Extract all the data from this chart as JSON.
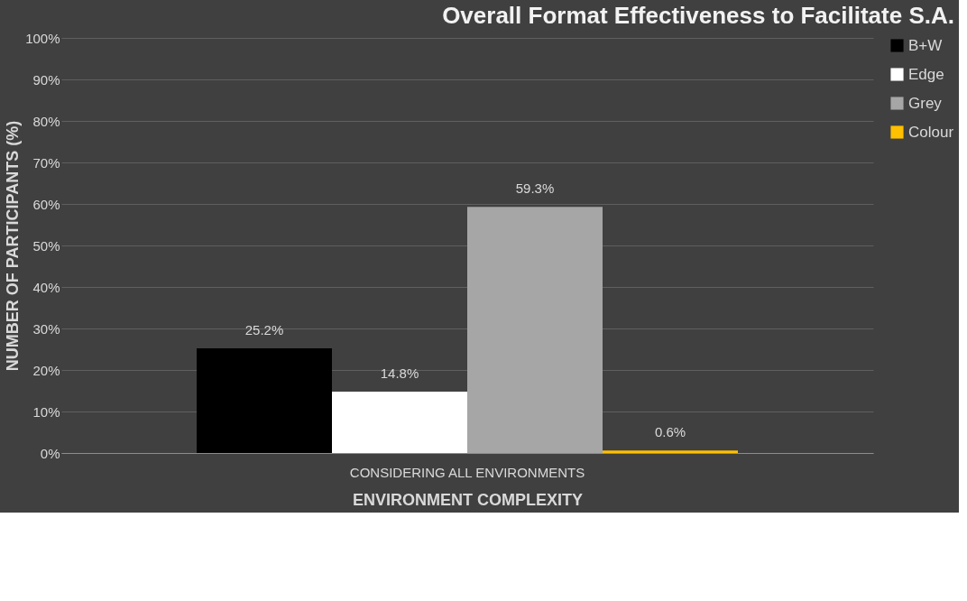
{
  "chart_data": {
    "type": "bar",
    "title": "Overall Format Effectiveness to Facilitate S.A.",
    "xlabel": "ENVIRONMENT COMPLEXITY",
    "ylabel": "NUMBER OF PARTICIPANTS (%)",
    "categories": [
      "CONSIDERING ALL ENVIRONMENTS"
    ],
    "series": [
      {
        "name": "B+W",
        "color": "#000000",
        "values": [
          25.2
        ],
        "value_labels": [
          "25.2%"
        ]
      },
      {
        "name": "Edge",
        "color": "#ffffff",
        "values": [
          14.8
        ],
        "value_labels": [
          "14.8%"
        ]
      },
      {
        "name": "Grey",
        "color": "#a6a6a6",
        "values": [
          59.3
        ],
        "value_labels": [
          "59.3%"
        ]
      },
      {
        "name": "Colour",
        "color": "#ffc000",
        "values": [
          0.6
        ],
        "value_labels": [
          "0.6%"
        ]
      }
    ],
    "ylim": [
      0,
      100
    ],
    "yticks": [
      {
        "value": 0,
        "label": "0%"
      },
      {
        "value": 10,
        "label": "10%"
      },
      {
        "value": 20,
        "label": "20%"
      },
      {
        "value": 30,
        "label": "30%"
      },
      {
        "value": 40,
        "label": "40%"
      },
      {
        "value": 50,
        "label": "50%"
      },
      {
        "value": 60,
        "label": "60%"
      },
      {
        "value": 70,
        "label": "70%"
      },
      {
        "value": 80,
        "label": "80%"
      },
      {
        "value": 90,
        "label": "90%"
      },
      {
        "value": 100,
        "label": "100%"
      }
    ],
    "grid": "y",
    "legend": "right"
  }
}
